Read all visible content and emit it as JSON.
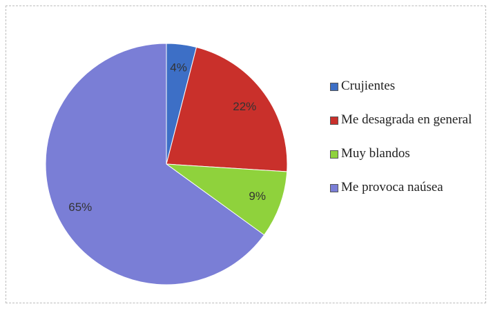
{
  "chart_data": {
    "type": "pie",
    "categories": [
      "Crujientes",
      "Me desagrada en general",
      "Muy blandos",
      "Me provoca naúsea"
    ],
    "values": [
      4,
      22,
      9,
      65
    ],
    "value_labels": [
      "4%",
      "22%",
      "9%",
      "65%"
    ],
    "colors": [
      "#3d6fc6",
      "#c9302b",
      "#8fd23c",
      "#7a7ed6"
    ],
    "legend": "right"
  }
}
